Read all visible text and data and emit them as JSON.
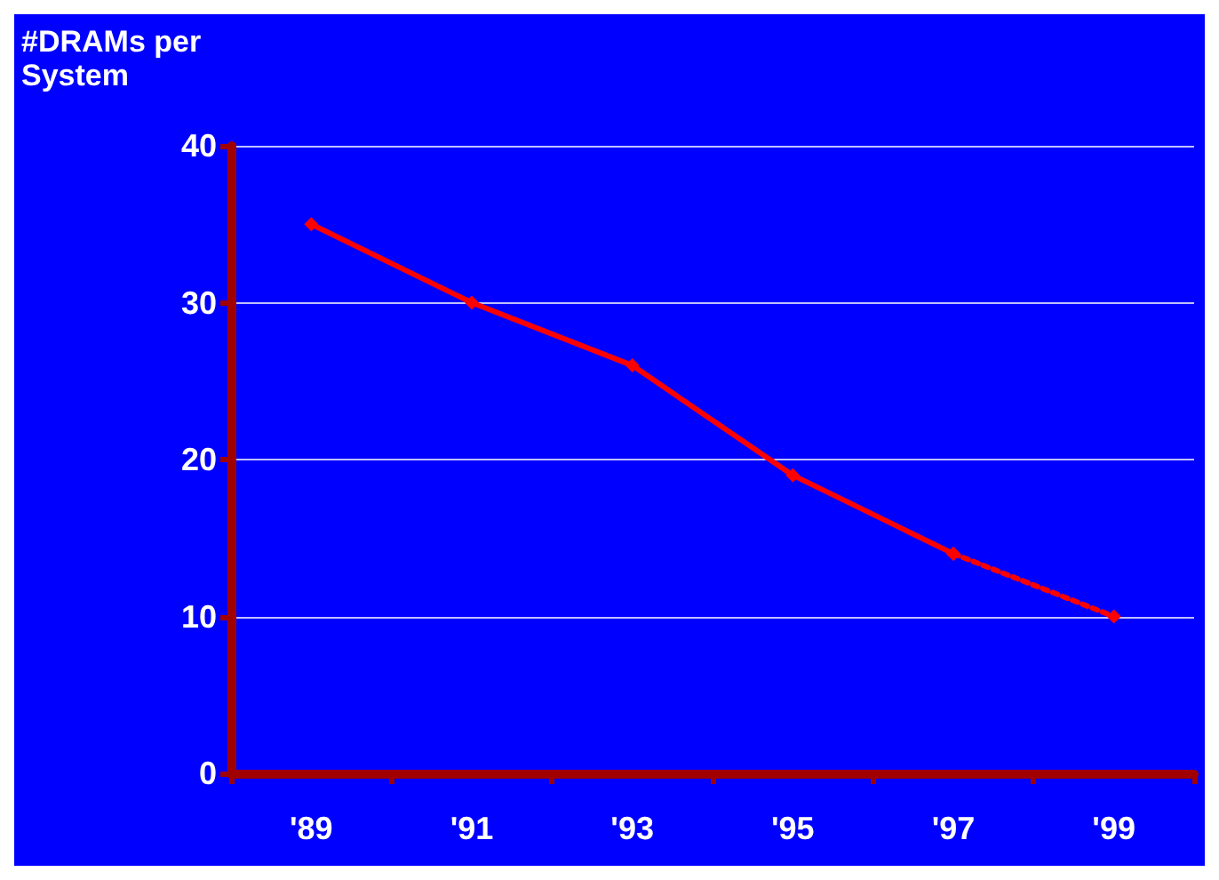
{
  "chart_data": {
    "type": "line",
    "ylabel": "#DRAMs per System",
    "categories": [
      "'89",
      "'91",
      "'93",
      "'95",
      "'97",
      "'99"
    ],
    "series": [
      {
        "color": "#ff0000",
        "line_style": "solid",
        "values": [
          35,
          30,
          26,
          19,
          14,
          null
        ]
      },
      {
        "color": "#ff0000",
        "line_style": "dotted",
        "values": [
          null,
          null,
          null,
          null,
          14,
          10
        ]
      }
    ],
    "ylim": [
      0,
      40
    ],
    "yticks": [
      0,
      10,
      20,
      30,
      40
    ],
    "grid": "y",
    "marker": "diamond"
  }
}
